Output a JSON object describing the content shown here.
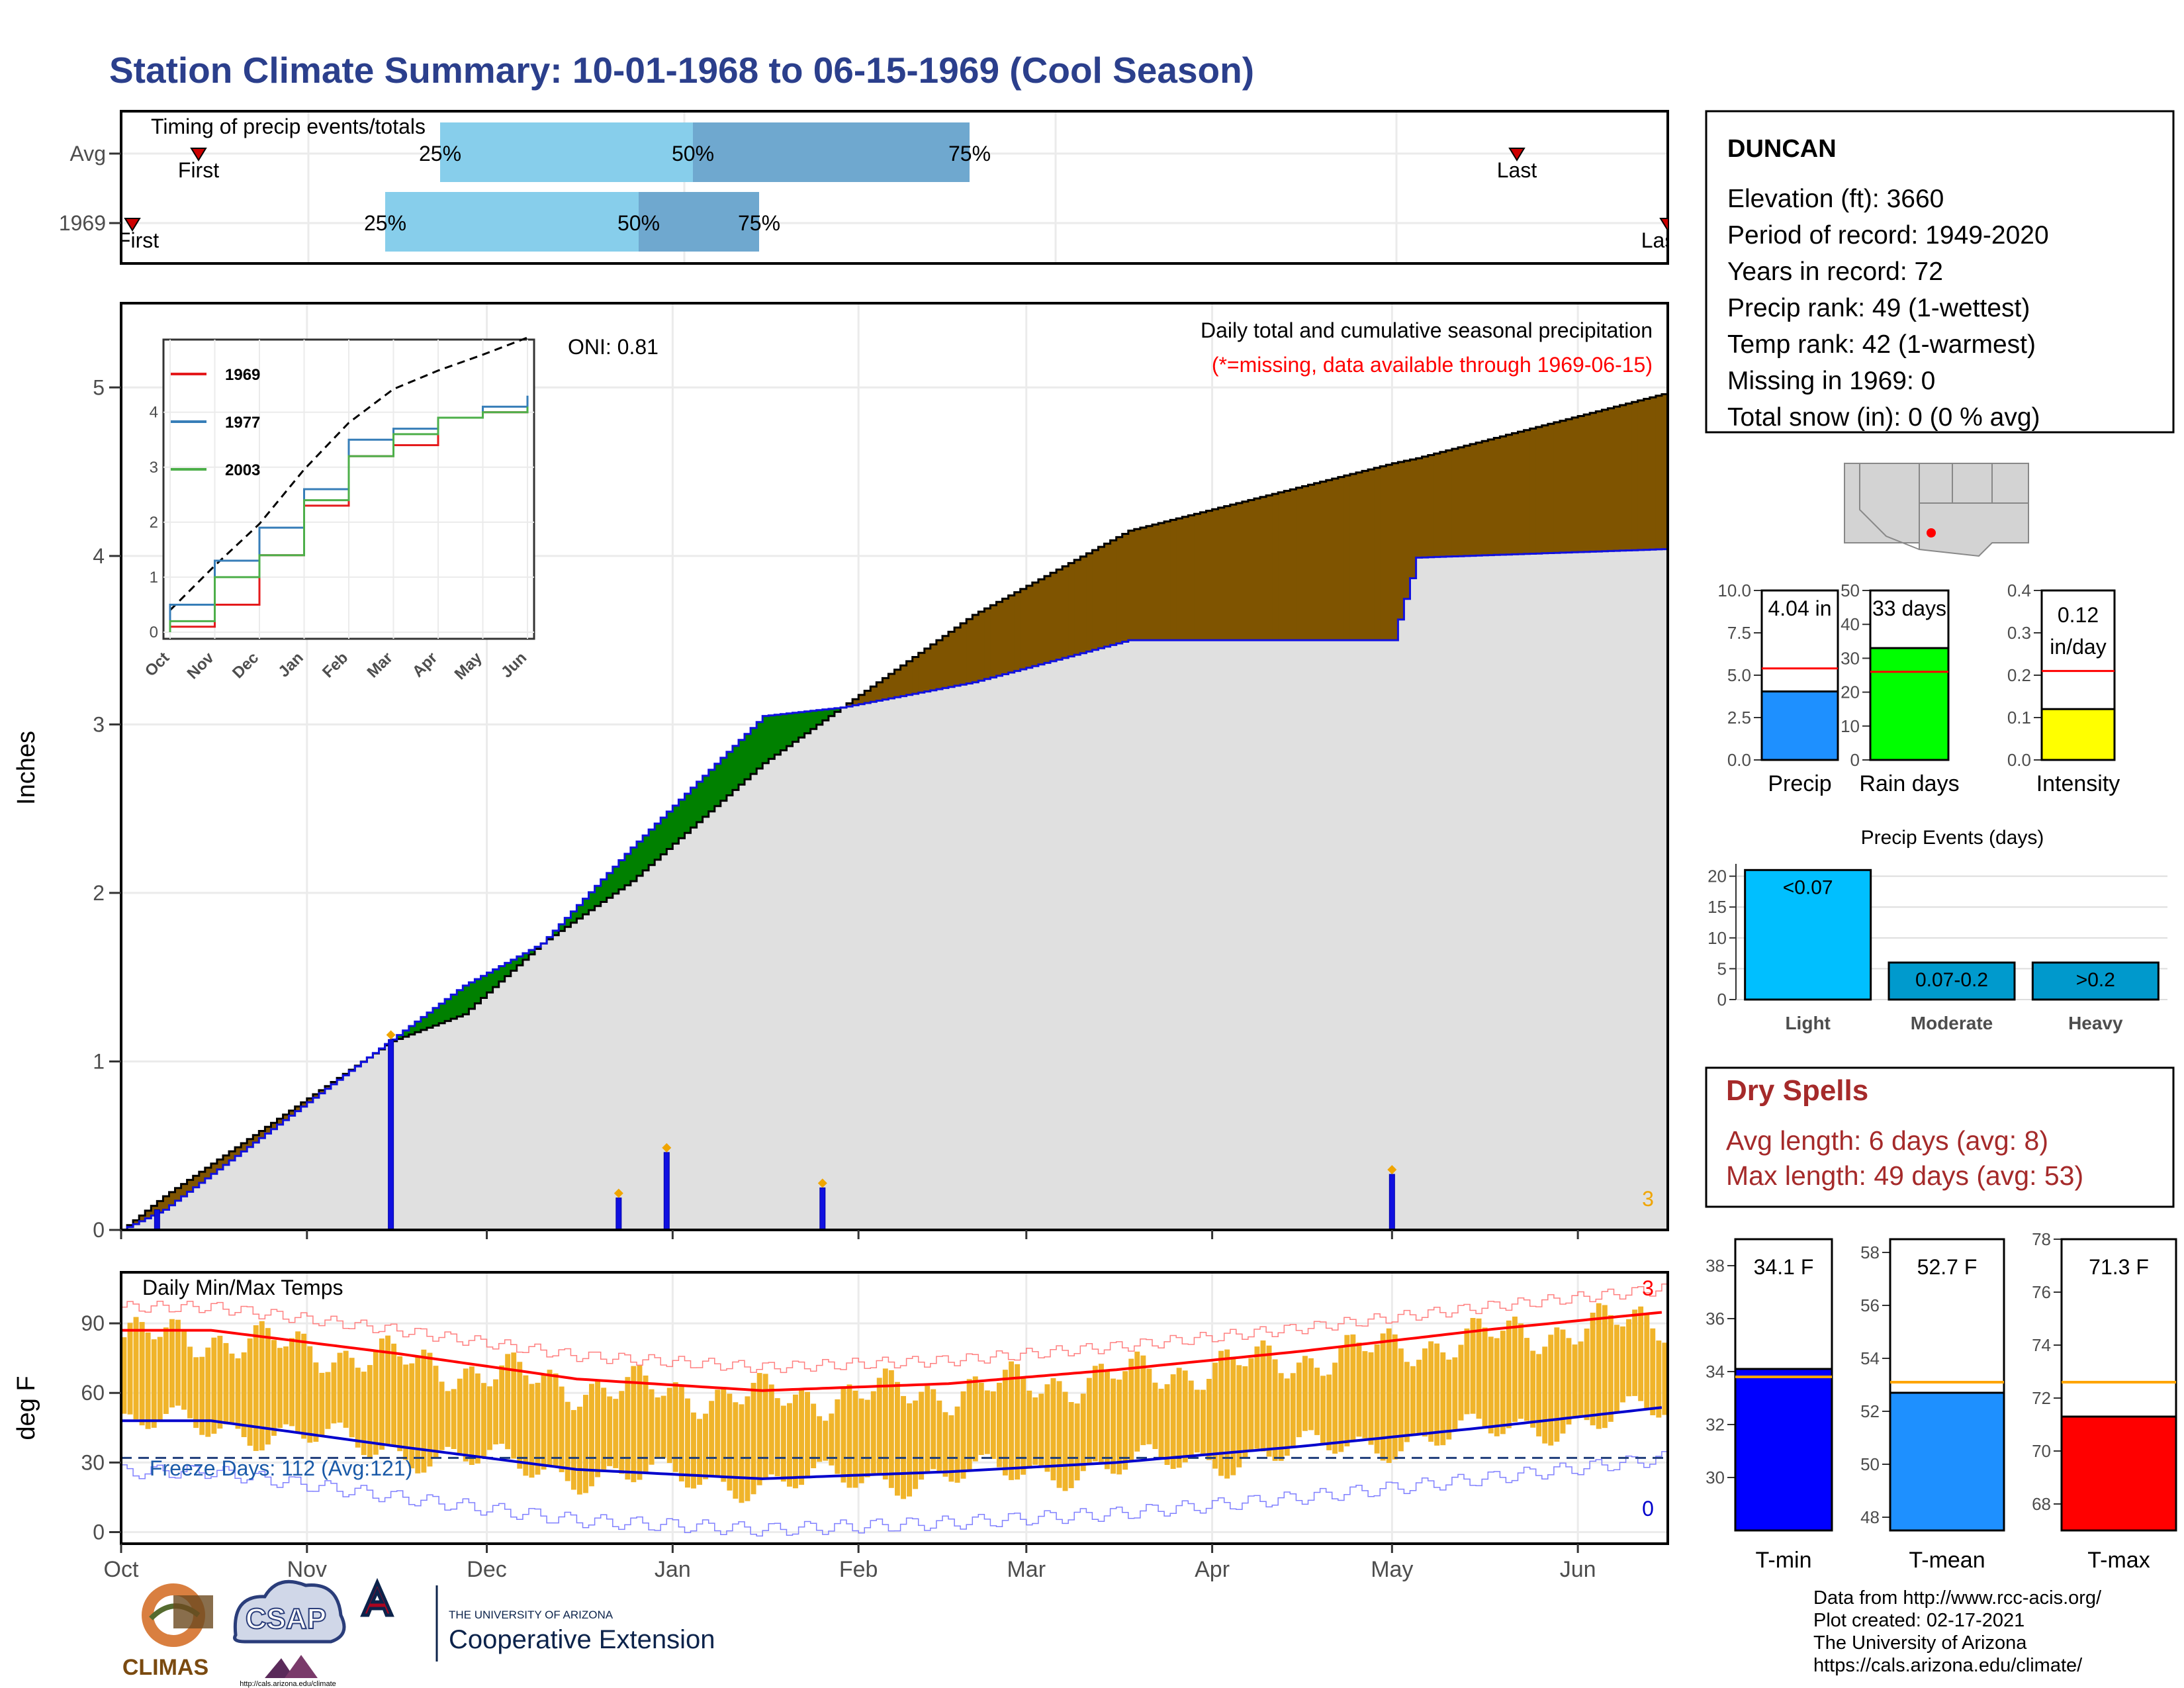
{
  "title": "Station Climate Summary: 10-01-1968 to 06-15-1969 (Cool Season)",
  "colors": {
    "title": "#2B3F8C",
    "brown": "#7F5400",
    "green": "#008000",
    "blue": "#1010E0",
    "gray_fill": "#E0E0E0",
    "light_blue": "#87CEEB",
    "mid_blue": "#6FA8CF",
    "orange": "#F0B42A",
    "red": "#FF0000",
    "dry_red": "#A52A2A"
  },
  "timing": {
    "label": "Timing of precip events/totals",
    "rows": [
      {
        "name": "Avg",
        "first_label": "First",
        "last_label": "Last",
        "p25": "25%",
        "p50": "50%",
        "p75": "75%"
      },
      {
        "name": "1969",
        "first_label": "First",
        "last_label": "Last",
        "p25": "25%",
        "p50": "50%",
        "p75": "75%"
      }
    ]
  },
  "precip_panel": {
    "ylabel": "Inches",
    "yticks": [
      "0",
      "1",
      "2",
      "3",
      "4",
      "5"
    ],
    "oni": "ONI: 0.81",
    "subtitle": "Daily total and cumulative seasonal precipitation",
    "missing_note": "(*=missing, data available through 1969-06-15)",
    "corner_value": "3"
  },
  "inset": {
    "series": [
      "1969",
      "1977",
      "2003"
    ],
    "series_colors": [
      "#E41A1C",
      "#377EB8",
      "#4DAF4A"
    ],
    "yticks": [
      "0",
      "1",
      "2",
      "3",
      "4"
    ],
    "months": [
      "Oct",
      "Nov",
      "Dec",
      "Jan",
      "Feb",
      "Mar",
      "Apr",
      "May",
      "Jun"
    ]
  },
  "temp_panel": {
    "ylabel": "deg F",
    "title": "Daily Min/Max Temps",
    "yticks": [
      "0",
      "30",
      "60",
      "90"
    ],
    "freeze": "Freeze Days: 112 (Avg:121)",
    "top_right": "3",
    "bottom_right": "0"
  },
  "months": [
    "Oct",
    "Nov",
    "Dec",
    "Jan",
    "Feb",
    "Mar",
    "Apr",
    "May",
    "Jun"
  ],
  "station": {
    "name": "DUNCAN",
    "lines": [
      "Elevation (ft): 3660",
      "Period of record: 1949-2020",
      "Years in record: 72",
      "Precip rank: 49 (1-wettest)",
      "Temp rank: 42 (1-warmest)",
      "Missing in 1969: 0",
      "Total snow (in): 0 (0 % avg)"
    ]
  },
  "mini_bars": [
    {
      "label": "Precip",
      "value_text": "4.04 in",
      "value": 4.04,
      "avg": 5.4,
      "ymax": 10,
      "yticks": [
        "0.0",
        "2.5",
        "5.0",
        "7.5",
        "10.0"
      ],
      "color": "#1E90FF"
    },
    {
      "label": "Rain days",
      "value_text": "33 days",
      "value": 33,
      "avg": 26,
      "ymax": 50,
      "yticks": [
        "0",
        "10",
        "20",
        "30",
        "40",
        "50"
      ],
      "color": "#00FF00"
    },
    {
      "label": "Intensity",
      "value_text": "0.12 in/day",
      "value_line1": "0.12",
      "value_line2": "in/day",
      "value": 0.12,
      "avg": 0.21,
      "ymax": 0.4,
      "yticks": [
        "0.0",
        "0.1",
        "0.2",
        "0.3",
        "0.4"
      ],
      "color": "#FFFF00"
    }
  ],
  "events": {
    "title": "Precip Events (days)",
    "yticks": [
      "0",
      "5",
      "10",
      "15",
      "20"
    ],
    "bars": [
      {
        "label": "Light",
        "bar_text": "<0.07",
        "value": 21,
        "color": "#00BFFF"
      },
      {
        "label": "Moderate",
        "bar_text": "0.07-0.2",
        "value": 6,
        "color": "#009ACD"
      },
      {
        "label": "Heavy",
        "bar_text": ">0.2",
        "value": 6,
        "color": "#0099CC"
      }
    ]
  },
  "dry_spells": {
    "title": "Dry Spells",
    "avg": "Avg length: 6 days (avg: 8)",
    "max": "Max length: 49 days (avg: 53)"
  },
  "temp_bars": [
    {
      "label": "T-min",
      "value_text": "34.1 F",
      "value": 34.1,
      "avg": 33.8,
      "ymin": 28,
      "ymax": 39,
      "yticks": [
        "30",
        "32",
        "34",
        "36",
        "38"
      ],
      "color": "#0000FF"
    },
    {
      "label": "T-mean",
      "value_text": "52.7 F",
      "value": 52.7,
      "avg": 53.1,
      "ymin": 47.5,
      "ymax": 58.5,
      "yticks": [
        "48",
        "50",
        "52",
        "54",
        "56",
        "58"
      ],
      "color": "#1E90FF"
    },
    {
      "label": "T-max",
      "value_text": "71.3 F",
      "value": 71.3,
      "avg": 72.6,
      "ymin": 67,
      "ymax": 78,
      "yticks": [
        "68",
        "70",
        "72",
        "74",
        "76",
        "78"
      ],
      "color": "#FF0000"
    }
  ],
  "footer": {
    "line1": "Data from http://www.rcc-acis.org/",
    "line2": "Plot created: 02-17-2021",
    "line3": "The University of Arizona",
    "line4": "https://cals.arizona.edu/climate/"
  },
  "logos": {
    "climas": "CLIMAS",
    "csap": "CSAP",
    "csap_url": "http://cals.arizona.edu/climate",
    "ua_small": "THE UNIVERSITY OF ARIZONA",
    "ua_big": "Cooperative Extension"
  },
  "chart_data": [
    {
      "type": "area",
      "title": "Daily total and cumulative seasonal precipitation",
      "ylabel": "Inches",
      "ylim": [
        0,
        5.5
      ],
      "x": [
        "1968-10-01",
        "1968-10-08",
        "1968-11-15",
        "1968-11-27",
        "1968-12-10",
        "1968-12-25",
        "1969-01-16",
        "1969-01-29",
        "1969-02-20",
        "1969-03-18",
        "1969-05-01",
        "1969-05-05",
        "1969-06-15"
      ],
      "series": [
        {
          "name": "1969",
          "values": [
            0.0,
            0.12,
            1.13,
            1.45,
            1.7,
            2.27,
            3.05,
            3.1,
            3.25,
            3.5,
            3.5,
            3.99,
            4.04
          ]
        },
        {
          "name": "Avg",
          "values": [
            0.0,
            0.2,
            1.12,
            1.28,
            1.7,
            2.07,
            2.77,
            3.1,
            3.65,
            4.15,
            4.55,
            4.58,
            4.96
          ]
        }
      ],
      "daily_precip": [
        {
          "date": "1968-10-07",
          "value": 0.12
        },
        {
          "date": "1968-11-15",
          "value": 1.13
        },
        {
          "date": "1968-12-23",
          "value": 0.19
        },
        {
          "date": "1968-12-31",
          "value": 0.46
        },
        {
          "date": "1969-01-26",
          "value": 0.25
        },
        {
          "date": "1969-05-01",
          "value": 0.33
        }
      ]
    },
    {
      "type": "line",
      "title": "",
      "x": [
        "Oct",
        "Nov",
        "Dec",
        "Jan",
        "Feb",
        "Mar",
        "Apr",
        "May",
        "Jun"
      ],
      "ylim": [
        0,
        5.2
      ],
      "series": [
        {
          "name": "1969",
          "values": [
            0.1,
            0.5,
            1.4,
            2.3,
            3.2,
            3.4,
            3.9,
            4.0,
            4.04
          ]
        },
        {
          "name": "1977",
          "values": [
            0.5,
            1.3,
            1.9,
            2.6,
            3.5,
            3.7,
            3.9,
            4.1,
            4.3
          ]
        },
        {
          "name": "2003",
          "values": [
            0.2,
            1.0,
            1.4,
            2.4,
            3.2,
            3.6,
            3.9,
            4.0,
            4.1
          ]
        }
      ]
    },
    {
      "type": "bar",
      "title": "Daily Min/Max Temps",
      "ylabel": "deg F",
      "ylim": [
        -5,
        112
      ],
      "x": [
        "Oct",
        "Nov",
        "Dec",
        "Jan",
        "Feb",
        "Mar",
        "Apr",
        "May",
        "Jun"
      ],
      "series": [
        {
          "name": "Avg max",
          "values": [
            87,
            77,
            66,
            61,
            64,
            70,
            78,
            87,
            95
          ]
        },
        {
          "name": "Avg min",
          "values": [
            48,
            37,
            27,
            23,
            26,
            30,
            37,
            45,
            54
          ]
        }
      ]
    }
  ]
}
